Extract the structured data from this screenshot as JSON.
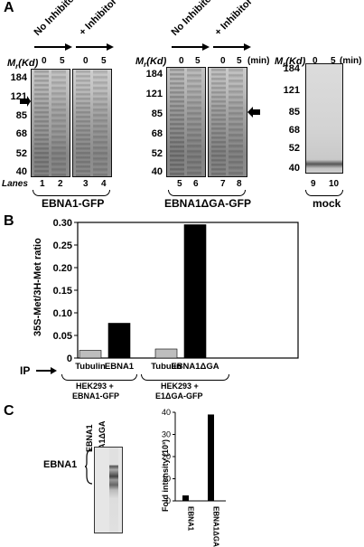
{
  "panel_a": {
    "letter": "A",
    "mw_label": "Mr(Kd)",
    "mw_label_sub": "r",
    "min_label": "(min)",
    "lanes_label": "Lanes",
    "gel1": {
      "headers": [
        "No Inhibitor",
        "+ Inhibitor"
      ],
      "times": [
        "0",
        "5",
        "0",
        "5"
      ],
      "ticks": [
        "184",
        "121",
        "85",
        "68",
        "52",
        "40"
      ],
      "lanes": [
        "1",
        "2",
        "3",
        "4"
      ],
      "name": "EBNA1-GFP"
    },
    "gel2": {
      "headers": [
        "No Inhibitor",
        "+ Inhibitor"
      ],
      "times": [
        "0",
        "5",
        "0",
        "5"
      ],
      "ticks": [
        "184",
        "121",
        "85",
        "68",
        "52",
        "40"
      ],
      "lanes": [
        "5",
        "6",
        "7",
        "8"
      ],
      "name": "EBNA1ΔGA-GFP"
    },
    "gel3": {
      "times": [
        "0",
        "5"
      ],
      "ticks": [
        "184",
        "121",
        "85",
        "68",
        "52",
        "40"
      ],
      "lanes": [
        "9",
        "10"
      ],
      "name": "mock"
    }
  },
  "panel_b": {
    "letter": "B",
    "chart_data": {
      "type": "bar",
      "ylabel": "35S-Met/3H-Met ratio",
      "ylim": [
        0,
        0.3
      ],
      "yticks": [
        "0",
        "0.05",
        "0.10",
        "0.15",
        "0.20",
        "0.25",
        "0.30"
      ],
      "categories": [
        "Tubulin",
        "EBNA1",
        "Tubulin",
        "EBNA1ΔGA"
      ],
      "values": [
        0.017,
        0.077,
        0.02,
        0.295
      ],
      "colors": [
        "#bdbdbd",
        "#000000",
        "#bdbdbd",
        "#000000"
      ],
      "grid": false
    },
    "ip_label": "IP",
    "group1": "HEK293 + EBNA1-GFP",
    "group1_line1": "HEK293 +",
    "group1_line2": "EBNA1-GFP",
    "group2_line1": "HEK293 +",
    "group2_line2": "E1ΔGA-GFP"
  },
  "panel_c": {
    "letter": "C",
    "gel_lanes": [
      "EBNA1",
      "EBNA1ΔGA"
    ],
    "band_label": "EBNA1",
    "chart_data": {
      "type": "bar",
      "ylabel": "Fold intensity (10³)",
      "ylim": [
        0,
        40
      ],
      "yticks": [
        "0",
        "10",
        "20",
        "30",
        "40"
      ],
      "categories": [
        "EBNA1",
        "EBNA1ΔGA"
      ],
      "values": [
        2.5,
        39
      ],
      "colors": [
        "#000000",
        "#000000"
      ],
      "grid": false
    }
  }
}
